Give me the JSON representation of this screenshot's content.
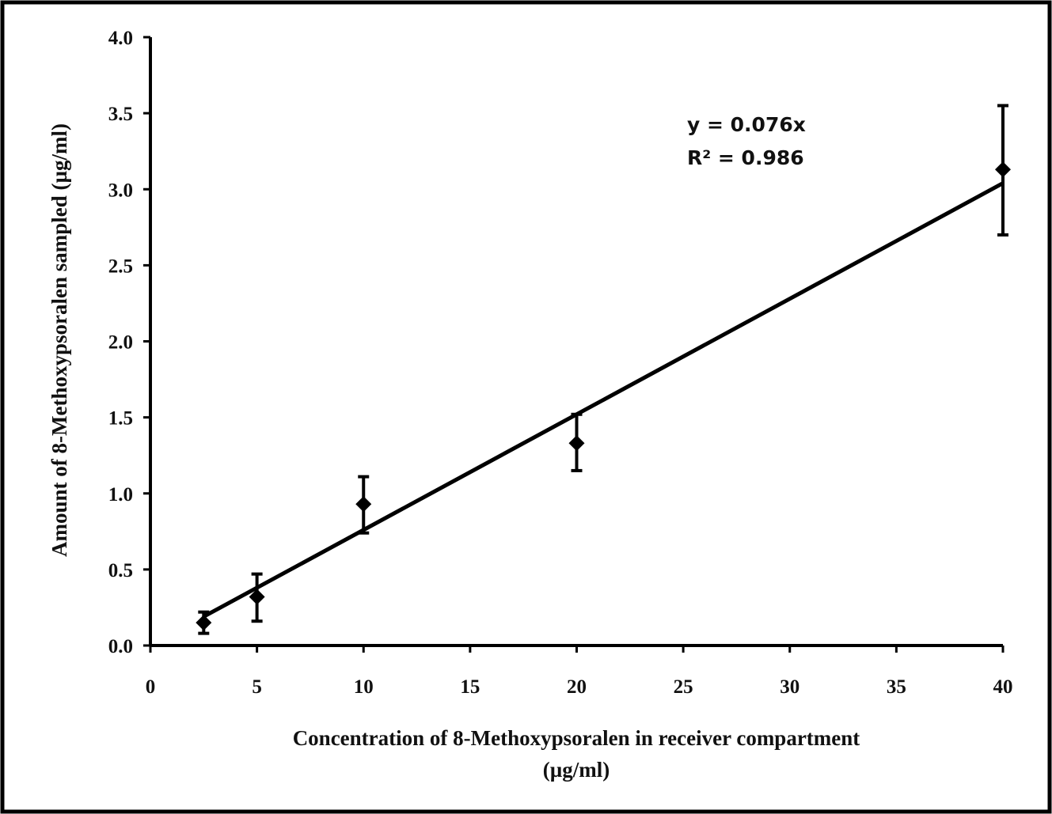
{
  "chart_data": {
    "type": "scatter",
    "title": "",
    "xlabel_line1": "Concentration of 8-Methoxypsoralen in receiver compartment",
    "xlabel_line2": "(µg/ml)",
    "ylabel": "Amount of 8-Methoxypsoralen sampled (µg/ml)",
    "xlim": [
      0,
      40
    ],
    "ylim": [
      0,
      4.0
    ],
    "xticks": [
      "0",
      "5",
      "10",
      "15",
      "20",
      "25",
      "30",
      "35",
      "40"
    ],
    "yticks": [
      "0.0",
      "0.5",
      "1.0",
      "1.5",
      "2.0",
      "2.5",
      "3.0",
      "3.5",
      "4.0"
    ],
    "grid": false,
    "series": [
      {
        "x": [
          2.5,
          5,
          10,
          20,
          40
        ],
        "y": [
          0.15,
          0.32,
          0.93,
          1.33,
          3.13
        ],
        "error_low": [
          0.08,
          0.16,
          0.74,
          1.15,
          2.7
        ],
        "error_high": [
          0.22,
          0.47,
          1.11,
          1.52,
          3.55
        ],
        "marker": "diamond",
        "color": "#000000"
      }
    ],
    "trendline": {
      "slope": 0.076,
      "x_start": 2.5,
      "x_end": 40,
      "equation": "y = 0.076x",
      "r_squared": "R² = 0.986"
    }
  }
}
